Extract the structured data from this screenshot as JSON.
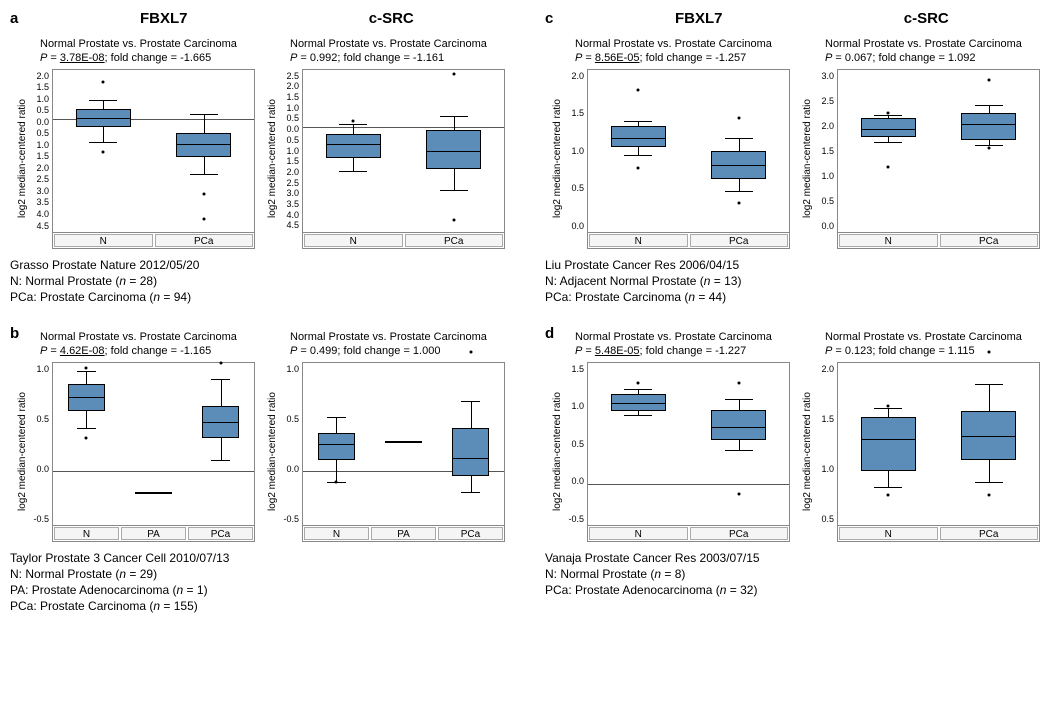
{
  "ylabel": "log2 median-centered ratio",
  "box_color": "#5b8db8",
  "panels": {
    "a": {
      "letter": "a",
      "gene_headers": [
        "FBXL7",
        "c-SRC"
      ],
      "caption": [
        "Grasso Prostate Nature 2012/05/20",
        "N: Normal Prostate (n = 28)",
        "PCa: Prostate Carcinoma (n = 94)"
      ],
      "sub": [
        {
          "comp": "Normal Prostate vs. Prostate Carcinoma",
          "p": "3.78E-08",
          "p_underline": true,
          "fc": "-1.665",
          "ymin": -4.5,
          "ymax": 2.0,
          "ticks": [
            "2.0",
            "1.5",
            "1.0",
            "0.5",
            "0.0",
            "0.5",
            "1.0",
            "1.5",
            "2.0",
            "2.5",
            "3.0",
            "3.5",
            "4.0",
            "4.5"
          ],
          "cats": [
            "N",
            "PCa"
          ],
          "boxes": [
            {
              "x": 0,
              "q1": -0.3,
              "med": 0.05,
              "q3": 0.4,
              "wl": -0.9,
              "wh": 0.8,
              "out": [
                1.5,
                -1.3
              ]
            },
            {
              "x": 1,
              "q1": -1.5,
              "med": -1.0,
              "q3": -0.55,
              "wl": -2.2,
              "wh": 0.2,
              "out": [
                -3.0,
                -4.0
              ]
            }
          ],
          "zero": 0
        },
        {
          "comp": "Normal Prostate vs. Prostate Carcinoma",
          "p": "0.992",
          "p_underline": false,
          "fc": "-1.161",
          "ymin": -4.5,
          "ymax": 2.5,
          "ticks": [
            "2.5",
            "2.0",
            "1.5",
            "1.0",
            "0.5",
            "0.0",
            "0.5",
            "1.0",
            "1.5",
            "2.0",
            "2.5",
            "3.0",
            "3.5",
            "4.0",
            "4.5"
          ],
          "cats": [
            "N",
            "PCa"
          ],
          "boxes": [
            {
              "x": 0,
              "q1": -1.3,
              "med": -0.7,
              "q3": -0.3,
              "wl": -1.9,
              "wh": 0.15,
              "out": [
                0.3
              ]
            },
            {
              "x": 1,
              "q1": -1.8,
              "med": -1.0,
              "q3": -0.1,
              "wl": -2.7,
              "wh": 0.5,
              "out": [
                2.3,
                -4.0
              ]
            }
          ],
          "zero": 0
        }
      ]
    },
    "b": {
      "letter": "b",
      "caption": [
        "Taylor Prostate 3 Cancer Cell 2010/07/13",
        "N: Normal Prostate (n = 29)",
        "PA: Prostate Adenocarcinoma (n = 1)",
        "PCa: Prostate Carcinoma (n = 155)"
      ],
      "sub": [
        {
          "comp": "Normal Prostate vs. Prostate Carcinoma",
          "p": "4.62E-08",
          "p_underline": true,
          "fc": "-1.165",
          "ymin": -0.5,
          "ymax": 1.0,
          "ticks": [
            "1.0",
            "0.5",
            "0.0",
            "-0.5"
          ],
          "cats": [
            "N",
            "PA",
            "PCa"
          ],
          "boxes": [
            {
              "x": 0,
              "q1": 0.55,
              "med": 0.68,
              "q3": 0.8,
              "wl": 0.4,
              "wh": 0.92,
              "out": [
                0.3,
                0.95
              ]
            },
            {
              "x": 1,
              "q1": -0.2,
              "med": -0.2,
              "q3": -0.2,
              "wl": -0.2,
              "wh": -0.2,
              "out": []
            },
            {
              "x": 2,
              "q1": 0.3,
              "med": 0.45,
              "q3": 0.6,
              "wl": 0.1,
              "wh": 0.85,
              "out": [
                1.0
              ]
            }
          ],
          "zero": 0
        },
        {
          "comp": "Normal Prostate vs. Prostate Carcinoma",
          "p": "0.499",
          "p_underline": false,
          "fc": "1.000",
          "ymin": -0.5,
          "ymax": 1.0,
          "ticks": [
            "1.0",
            "0.5",
            "0.0",
            "-0.5"
          ],
          "cats": [
            "N",
            "PA",
            "PCa"
          ],
          "boxes": [
            {
              "x": 0,
              "q1": 0.1,
              "med": 0.25,
              "q3": 0.35,
              "wl": -0.1,
              "wh": 0.5,
              "out": [
                -0.1
              ]
            },
            {
              "x": 1,
              "q1": 0.28,
              "med": 0.28,
              "q3": 0.28,
              "wl": 0.28,
              "wh": 0.28,
              "out": []
            },
            {
              "x": 2,
              "q1": -0.05,
              "med": 0.12,
              "q3": 0.4,
              "wl": -0.2,
              "wh": 0.65,
              "out": [
                1.1
              ]
            }
          ],
          "zero": 0
        }
      ]
    },
    "c": {
      "letter": "c",
      "gene_headers": [
        "FBXL7",
        "c-SRC"
      ],
      "caption": [
        "Liu Prostate Cancer Res 2006/04/15",
        "N:  Adjacent Normal Prostate (n = 13)",
        "PCa: Prostate Carcinoma (n = 44)"
      ],
      "sub": [
        {
          "comp": "Normal Prostate vs. Prostate Carcinoma",
          "p": "8.56E-05",
          "p_underline": true,
          "fc": "-1.257",
          "ymin": 0.0,
          "ymax": 2.0,
          "ticks": [
            "2.0",
            "1.5",
            "1.0",
            "0.5",
            "0.0"
          ],
          "cats": [
            "N",
            "PCa"
          ],
          "boxes": [
            {
              "x": 0,
              "q1": 1.05,
              "med": 1.15,
              "q3": 1.3,
              "wl": 0.95,
              "wh": 1.37,
              "out": [
                1.75,
                0.78
              ]
            },
            {
              "x": 1,
              "q1": 0.65,
              "med": 0.82,
              "q3": 1.0,
              "wl": 0.5,
              "wh": 1.15,
              "out": [
                1.4,
                0.35
              ]
            }
          ]
        },
        {
          "comp": "Normal Prostate vs. Prostate Carcinoma",
          "p": "0.067",
          "p_underline": false,
          "fc": "1.092",
          "ymin": 0.0,
          "ymax": 3.0,
          "ticks": [
            "3.0",
            "2.5",
            "2.0",
            "1.5",
            "1.0",
            "0.5",
            "0.0"
          ],
          "cats": [
            "N",
            "PCa"
          ],
          "boxes": [
            {
              "x": 0,
              "q1": 1.75,
              "med": 1.9,
              "q3": 2.1,
              "wl": 1.65,
              "wh": 2.15,
              "out": [
                2.2,
                1.2
              ]
            },
            {
              "x": 1,
              "q1": 1.7,
              "med": 2.0,
              "q3": 2.2,
              "wl": 1.6,
              "wh": 2.35,
              "out": [
                2.8,
                1.55
              ]
            }
          ]
        }
      ]
    },
    "d": {
      "letter": "d",
      "caption": [
        "Vanaja Prostate Cancer Res 2003/07/15",
        "N: Normal Prostate (n = 8)",
        "PCa: Prostate Adenocarcinoma (n = 32)"
      ],
      "sub": [
        {
          "comp": "Normal Prostate vs. Prostate Carcinoma",
          "p": "5.48E-05",
          "p_underline": true,
          "fc": "-1.227",
          "ymin": -0.5,
          "ymax": 1.5,
          "ticks": [
            "1.5",
            "1.0",
            "0.5",
            "0.0",
            "-0.5"
          ],
          "cats": [
            "N",
            "PCa"
          ],
          "boxes": [
            {
              "x": 0,
              "q1": 0.9,
              "med": 1.0,
              "q3": 1.12,
              "wl": 0.85,
              "wh": 1.18,
              "out": [
                1.25
              ]
            },
            {
              "x": 1,
              "q1": 0.55,
              "med": 0.7,
              "q3": 0.92,
              "wl": 0.42,
              "wh": 1.05,
              "out": [
                1.25,
                -0.12
              ]
            }
          ],
          "zero": 0
        },
        {
          "comp": "Normal Prostate vs. Prostate Carcinoma",
          "p": "0.123",
          "p_underline": false,
          "fc": "1.115",
          "ymin": 0.5,
          "ymax": 2.0,
          "ticks": [
            "2.0",
            "1.5",
            "1.0",
            "0.5"
          ],
          "cats": [
            "N",
            "PCa"
          ],
          "boxes": [
            {
              "x": 0,
              "q1": 1.0,
              "med": 1.3,
              "q3": 1.5,
              "wl": 0.85,
              "wh": 1.58,
              "out": [
                1.6,
                0.78
              ]
            },
            {
              "x": 1,
              "q1": 1.1,
              "med": 1.32,
              "q3": 1.55,
              "wl": 0.9,
              "wh": 1.8,
              "out": [
                2.1,
                0.78
              ]
            }
          ]
        }
      ]
    }
  }
}
